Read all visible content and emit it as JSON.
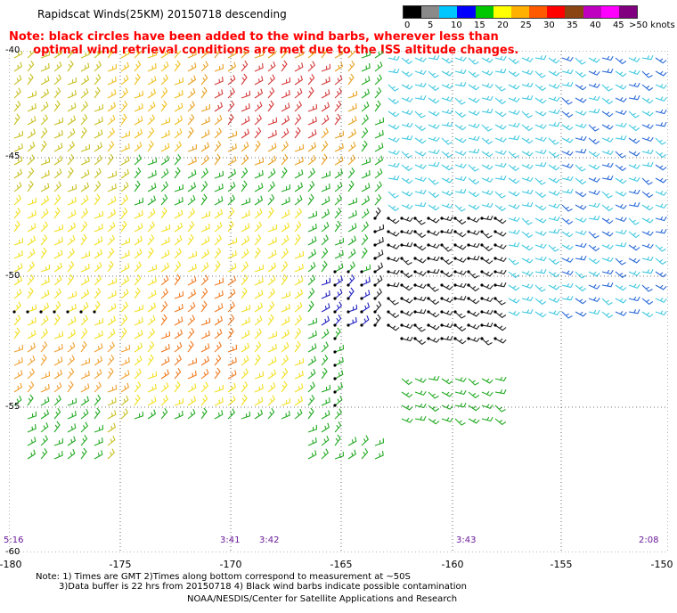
{
  "title": "Rapidscat Winds(25KM) 20150718 descending",
  "legend": {
    "units": ">50 knots",
    "ticks": [
      "0",
      "5",
      "10",
      "15",
      "20",
      "25",
      "30",
      "35",
      "40",
      "45"
    ],
    "colors": [
      "#000000",
      "#8a8a8a",
      "#00c8ff",
      "#0000ff",
      "#00c800",
      "#ffff00",
      "#ffb000",
      "#ff5a00",
      "#ff0000",
      "#8b4513",
      "#c000c0",
      "#ff00ff",
      "#800080"
    ]
  },
  "note_lines": [
    "Note: black circles have been added to the wind barbs, wherever less than",
    "      optimal wind retrieval conditions are met due to the ISS altitude changes."
  ],
  "lat_labels": [
    "-40",
    "-45",
    "-50",
    "-55",
    "-60"
  ],
  "lon_labels": [
    "-180",
    "-175",
    "-170",
    "-165",
    "-160",
    "-155",
    "-150"
  ],
  "time_labels": [
    "5:16",
    "3:41",
    "3:42",
    "3:43",
    "2:08"
  ],
  "footer": [
    "Note: 1) Times are GMT 2)Times along bottom correspond to measurement at ~50S",
    "3)Data buffer is 22 hrs from 20150718 4) Black wind barbs indicate possible contamination",
    "NOAA/NESDIS/Center for Satellite Applications and Research"
  ]
}
